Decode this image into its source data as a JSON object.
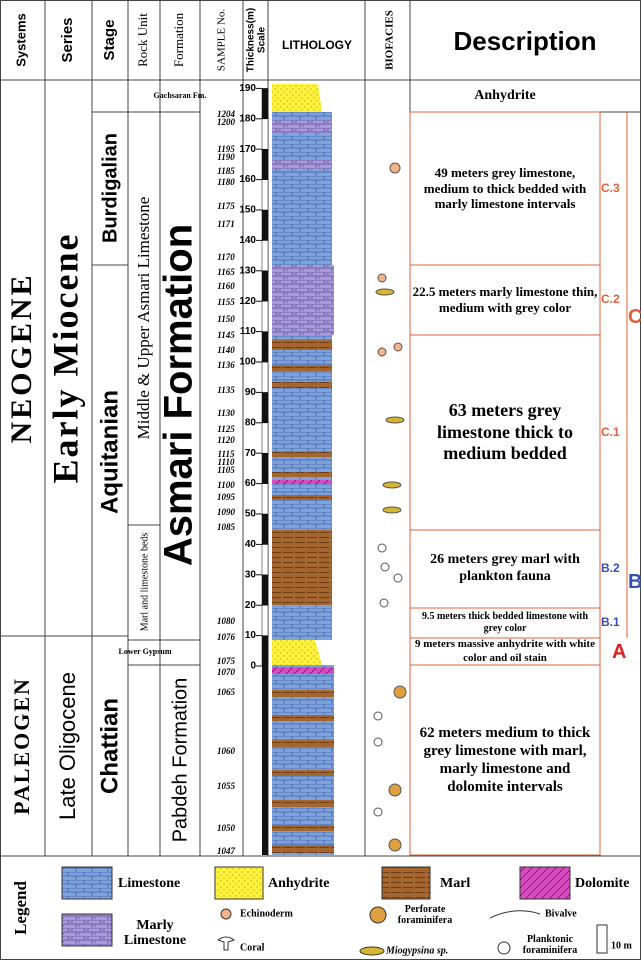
{
  "header": {
    "systems": "Systems",
    "series": "Series",
    "stage": "Stage",
    "rock_unit": "Rock Unit",
    "formation": "Formation",
    "sample_no": "SAMPLE No.",
    "thickness": "Thickness(m)",
    "scale": "Scale",
    "lithology": "LITHOLOGY",
    "biofacies": "BIOFACIES",
    "description": "Description"
  },
  "systems": [
    "NEOGENE",
    "PALEOGEN"
  ],
  "series": [
    "Early Miocene",
    "Late Oligocene"
  ],
  "stages": [
    "Burdigalian",
    "Aquitanian",
    "Chattian"
  ],
  "rock_units": [
    "Middle & Upper Asmari Limestone",
    "Marl and limestone beds",
    "Lower Gypsum"
  ],
  "formations": [
    "Gachsaran Fm.",
    "Asmari Formation",
    "Pabdeh Formation"
  ],
  "sample_numbers": [
    "1204",
    "1200",
    "1195",
    "1190",
    "1185",
    "1180",
    "1175",
    "1171",
    "1170",
    "1165",
    "1160",
    "1155",
    "1150",
    "1145",
    "1140",
    "1136",
    "1135",
    "1130",
    "1125",
    "1120",
    "1115",
    "1110",
    "1105",
    "1100",
    "1095",
    "1090",
    "1085",
    "1080",
    "1076",
    "1075",
    "1070",
    "1065",
    "1060",
    "1055",
    "1050",
    "1047"
  ],
  "thickness_ticks": [
    0,
    10,
    20,
    30,
    40,
    50,
    60,
    70,
    80,
    90,
    100,
    110,
    120,
    130,
    140,
    150,
    160,
    170,
    180,
    190
  ],
  "description": {
    "rows": [
      {
        "text": "Anhydrite"
      },
      {
        "text": "49 meters grey limestone, medium to thick bedded with marly limestone intervals",
        "code": "C.3"
      },
      {
        "text": "22.5 meters marly limestone thin, medium with grey color",
        "code": "C.2"
      },
      {
        "text": "63 meters grey limestone thick to medium bedded",
        "code": "C.1"
      },
      {
        "text": "26 meters grey marl with plankton fauna",
        "code": "B.2"
      },
      {
        "text": "9.5 meters thick bedded limestone with grey color",
        "code": "B.1"
      },
      {
        "text": "9 meters massive anhydrite with white color and oil stain",
        "code": "A"
      },
      {
        "text": "62 meters medium to thick grey limestone with marl, marly limestone and dolomite intervals"
      }
    ],
    "units": [
      "C",
      "B"
    ]
  },
  "legend": {
    "title": "Legend",
    "limestone": "Limestone",
    "anhydrite": "Anhydrite",
    "marl": "Marl",
    "dolomite": "Dolomite",
    "marly_limestone": "Marly Limestone",
    "echinoderm": "Echinoderm",
    "coral": "Coral",
    "perforate": "Perforate foraminifera",
    "miogypsina": "Miogypsina sp.",
    "bivalve": "Bivalve",
    "planktonic": "Planktonic foraminifera",
    "scale": "10 m"
  }
}
